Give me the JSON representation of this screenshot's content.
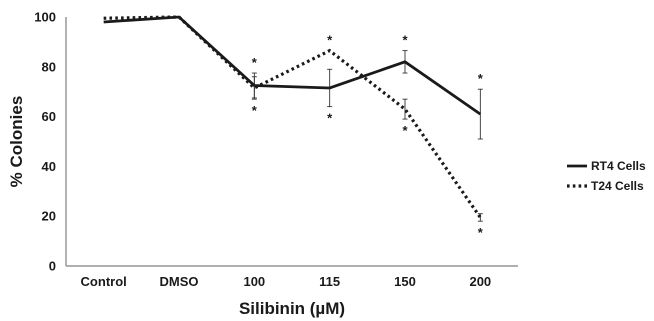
{
  "chart_data": {
    "type": "line",
    "xlabel": "Silibinin (µM)",
    "ylabel": "% Colonies",
    "categories": [
      "Control",
      "DMSO",
      "100",
      "115",
      "150",
      "200"
    ],
    "ylim": [
      0,
      100
    ],
    "yticks": [
      0,
      20,
      40,
      60,
      80,
      100
    ],
    "grid": false,
    "legend_position": "right",
    "significance_marker": "*",
    "series": [
      {
        "name": "RT4 Cells",
        "style": "solid",
        "color": "#1a1a1a",
        "values": [
          98,
          100,
          72.5,
          71.5,
          82,
          61
        ],
        "errors": [
          0,
          0,
          5,
          7.5,
          4.5,
          10
        ],
        "significant": [
          false,
          false,
          true,
          true,
          true,
          true
        ]
      },
      {
        "name": "T24 Cells",
        "style": "dotted",
        "color": "#1a1a1a",
        "values": [
          99.5,
          100,
          71.5,
          86.5,
          63,
          19.5
        ],
        "errors": [
          0,
          0,
          4.5,
          0,
          4,
          1.5
        ],
        "significant": [
          false,
          false,
          true,
          true,
          true,
          true
        ]
      }
    ]
  }
}
